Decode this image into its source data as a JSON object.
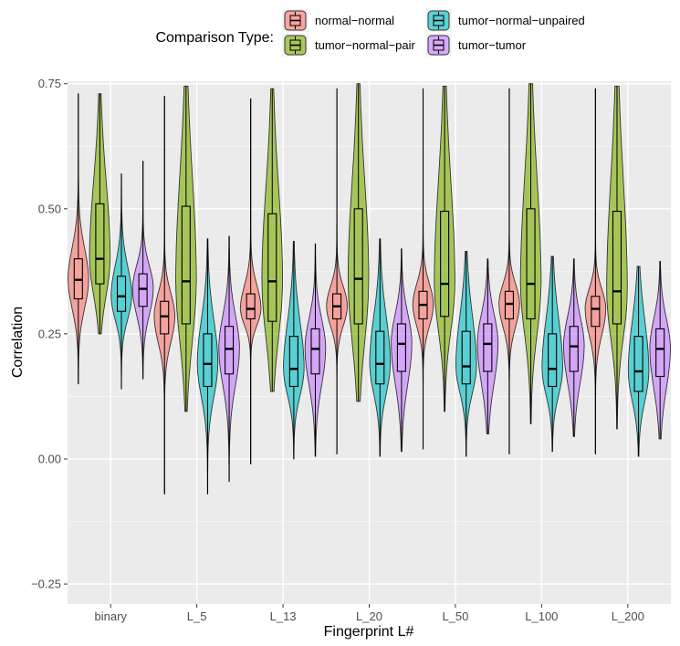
{
  "chart_data": {
    "type": "violin",
    "title": "",
    "xlabel": "Fingerprint L#",
    "ylabel": "Correlation",
    "ylim": [
      -0.29,
      0.755
    ],
    "yticks": [
      -0.25,
      0.0,
      0.25,
      0.5,
      0.75
    ],
    "ytick_labels": [
      "−0.25",
      "0.00",
      "0.25",
      "0.50",
      "0.75"
    ],
    "categories": [
      "binary",
      "L_5",
      "L_13",
      "L_20",
      "L_50",
      "L_100",
      "L_200"
    ],
    "grid": true,
    "legend": {
      "title": "Comparison Type:",
      "position": "top",
      "entries": [
        "normal−normal",
        "tumor−normal−pair",
        "tumor−normal−unpaired",
        "tumor−tumor"
      ]
    },
    "series": [
      {
        "name": "normal−normal",
        "color": "#F8766D",
        "stats": [
          {
            "min": 0.15,
            "q1": 0.32,
            "median": 0.358,
            "q3": 0.4,
            "max": 0.73
          },
          {
            "min": -0.07,
            "q1": 0.25,
            "median": 0.285,
            "q3": 0.315,
            "max": 0.725
          },
          {
            "min": -0.01,
            "q1": 0.28,
            "median": 0.3,
            "q3": 0.33,
            "max": 0.72
          },
          {
            "min": 0.01,
            "q1": 0.28,
            "median": 0.305,
            "q3": 0.33,
            "max": 0.74
          },
          {
            "min": 0.02,
            "q1": 0.28,
            "median": 0.308,
            "q3": 0.335,
            "max": 0.74
          },
          {
            "min": 0.01,
            "q1": 0.28,
            "median": 0.31,
            "q3": 0.335,
            "max": 0.74
          },
          {
            "min": 0.01,
            "q1": 0.265,
            "median": 0.3,
            "q3": 0.325,
            "max": 0.74
          }
        ]
      },
      {
        "name": "tumor−normal−pair",
        "color": "#7CAE00",
        "stats": [
          {
            "min": 0.25,
            "q1": 0.35,
            "median": 0.4,
            "q3": 0.51,
            "max": 0.73
          },
          {
            "min": 0.095,
            "q1": 0.27,
            "median": 0.355,
            "q3": 0.505,
            "max": 0.745
          },
          {
            "min": 0.135,
            "q1": 0.275,
            "median": 0.355,
            "q3": 0.49,
            "max": 0.74
          },
          {
            "min": 0.115,
            "q1": 0.27,
            "median": 0.36,
            "q3": 0.5,
            "max": 0.75
          },
          {
            "min": 0.095,
            "q1": 0.285,
            "median": 0.35,
            "q3": 0.495,
            "max": 0.745
          },
          {
            "min": 0.07,
            "q1": 0.28,
            "median": 0.35,
            "q3": 0.5,
            "max": 0.75
          },
          {
            "min": 0.06,
            "q1": 0.27,
            "median": 0.335,
            "q3": 0.495,
            "max": 0.745
          }
        ]
      },
      {
        "name": "tumor−normal−unpaired",
        "color": "#00BFC4",
        "stats": [
          {
            "min": 0.14,
            "q1": 0.295,
            "median": 0.325,
            "q3": 0.365,
            "max": 0.57
          },
          {
            "min": -0.07,
            "q1": 0.145,
            "median": 0.19,
            "q3": 0.25,
            "max": 0.44
          },
          {
            "min": 0.0,
            "q1": 0.145,
            "median": 0.18,
            "q3": 0.245,
            "max": 0.435
          },
          {
            "min": 0.005,
            "q1": 0.15,
            "median": 0.19,
            "q3": 0.255,
            "max": 0.44
          },
          {
            "min": 0.005,
            "q1": 0.15,
            "median": 0.185,
            "q3": 0.255,
            "max": 0.415
          },
          {
            "min": 0.015,
            "q1": 0.145,
            "median": 0.18,
            "q3": 0.25,
            "max": 0.405
          },
          {
            "min": 0.005,
            "q1": 0.135,
            "median": 0.175,
            "q3": 0.245,
            "max": 0.385
          }
        ]
      },
      {
        "name": "tumor−tumor",
        "color": "#C77CFF",
        "stats": [
          {
            "min": 0.16,
            "q1": 0.305,
            "median": 0.34,
            "q3": 0.37,
            "max": 0.595
          },
          {
            "min": -0.045,
            "q1": 0.17,
            "median": 0.22,
            "q3": 0.265,
            "max": 0.445
          },
          {
            "min": 0.005,
            "q1": 0.17,
            "median": 0.22,
            "q3": 0.26,
            "max": 0.43
          },
          {
            "min": 0.015,
            "q1": 0.175,
            "median": 0.23,
            "q3": 0.27,
            "max": 0.42
          },
          {
            "min": 0.05,
            "q1": 0.175,
            "median": 0.23,
            "q3": 0.27,
            "max": 0.4
          },
          {
            "min": 0.045,
            "q1": 0.175,
            "median": 0.225,
            "q3": 0.265,
            "max": 0.4
          },
          {
            "min": 0.04,
            "q1": 0.165,
            "median": 0.22,
            "q3": 0.26,
            "max": 0.395
          }
        ]
      }
    ]
  }
}
